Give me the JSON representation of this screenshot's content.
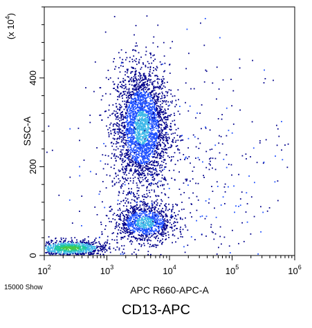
{
  "chart_data": {
    "type": "scatter",
    "title": "CD13-APC",
    "xlabel": "APC R660-APC-A",
    "ylabel": "SSC-A",
    "y_multiplier_label": "(x 10",
    "y_multiplier_exponent": "4",
    "x_scale": "log",
    "x_range": [
      100,
      1000000
    ],
    "x_ticks": [
      {
        "base": "10",
        "exp": "2"
      },
      {
        "base": "10",
        "exp": "3"
      },
      {
        "base": "10",
        "exp": "4"
      },
      {
        "base": "10",
        "exp": "5"
      },
      {
        "base": "10",
        "exp": "6"
      }
    ],
    "y_scale": "linear",
    "y_range": [
      0,
      560
    ],
    "y_ticks": [
      "0",
      "200",
      "400"
    ],
    "event_count_label": "15000 Show",
    "grid": false,
    "point_colors": [
      "#00008b",
      "#1e50ff",
      "#3fb8e8",
      "#1ec8a0",
      "#46c846"
    ],
    "populations": [
      {
        "center_log_x": 3.55,
        "center_y": 290,
        "spread_log_x": 0.22,
        "spread_y": 70,
        "share": 0.55
      },
      {
        "center_log_x": 3.6,
        "center_y": 75,
        "spread_log_x": 0.25,
        "spread_y": 22,
        "share": 0.2
      },
      {
        "center_log_x": 2.4,
        "center_y": 18,
        "spread_log_x": 0.3,
        "spread_y": 9,
        "share": 0.17
      },
      {
        "center_log_x": 4.2,
        "center_y": 200,
        "spread_log_x": 0.9,
        "spread_y": 130,
        "share": 0.08
      }
    ]
  },
  "footer": {
    "caption": "CD13-APC"
  }
}
